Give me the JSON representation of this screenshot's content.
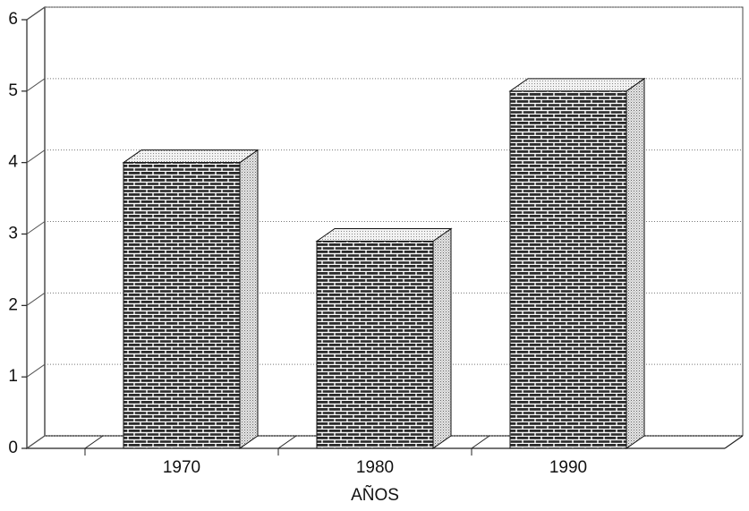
{
  "chart_data": {
    "type": "bar3d",
    "x_label": "AÑOS",
    "categories": [
      "1970",
      "1980",
      "1990"
    ],
    "values": [
      4,
      2.9,
      5
    ],
    "ylim": [
      0,
      6
    ],
    "yticks": [
      0,
      1,
      2,
      3,
      4,
      5,
      6
    ],
    "grid": true
  }
}
